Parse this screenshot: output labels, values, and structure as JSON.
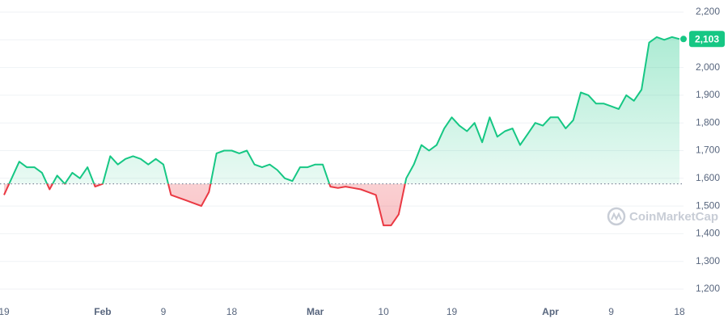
{
  "chart_data": {
    "type": "line",
    "categories": [
      "19",
      null,
      null,
      null,
      null,
      null,
      null,
      null,
      null,
      null,
      null,
      null,
      null,
      "Feb",
      null,
      null,
      null,
      null,
      null,
      null,
      null,
      "9",
      null,
      null,
      null,
      null,
      null,
      null,
      null,
      null,
      "18",
      null,
      null,
      null,
      null,
      null,
      null,
      null,
      null,
      null,
      null,
      "Mar",
      null,
      null,
      null,
      null,
      null,
      null,
      null,
      null,
      "10",
      null,
      null,
      null,
      null,
      null,
      null,
      null,
      null,
      "19",
      null,
      null,
      null,
      null,
      null,
      null,
      null,
      null,
      null,
      null,
      null,
      null,
      "Apr",
      null,
      null,
      null,
      null,
      null,
      null,
      null,
      "9",
      null,
      null,
      null,
      null,
      null,
      null,
      null,
      null,
      "18"
    ],
    "values": [
      1540,
      1600,
      1660,
      1640,
      1640,
      1620,
      1560,
      1610,
      1580,
      1620,
      1600,
      1640,
      1570,
      1580,
      1680,
      1650,
      1670,
      1680,
      1670,
      1650,
      1670,
      1650,
      1540,
      1530,
      1520,
      1510,
      1500,
      1550,
      1690,
      1700,
      1700,
      1690,
      1700,
      1650,
      1640,
      1650,
      1630,
      1600,
      1590,
      1640,
      1640,
      1650,
      1650,
      1570,
      1565,
      1570,
      1565,
      1560,
      1550,
      1540,
      1430,
      1430,
      1470,
      1600,
      1650,
      1720,
      1700,
      1720,
      1780,
      1820,
      1790,
      1770,
      1800,
      1730,
      1820,
      1750,
      1770,
      1780,
      1720,
      1760,
      1800,
      1790,
      1820,
      1820,
      1780,
      1810,
      1910,
      1900,
      1870,
      1870,
      1860,
      1850,
      1900,
      1880,
      1920,
      2090,
      2110,
      2100,
      2110,
      2103
    ],
    "up_color": "#16c784",
    "down_color": "#ea3943",
    "baseline": 1580,
    "current_price": {
      "value": 2103,
      "label": "2,103"
    },
    "ylim": [
      1200,
      2200
    ],
    "yticks": [
      {
        "value": 1200,
        "label": "1,200"
      },
      {
        "value": 1300,
        "label": "1,300"
      },
      {
        "value": 1400,
        "label": "1,400"
      },
      {
        "value": 1500,
        "label": "1,500"
      },
      {
        "value": 1600,
        "label": "1,600"
      },
      {
        "value": 1700,
        "label": "1,700"
      },
      {
        "value": 1800,
        "label": "1,800"
      },
      {
        "value": 1900,
        "label": "1,900"
      },
      {
        "value": 2000,
        "label": "2,000"
      },
      {
        "value": 2100,
        "label": "2,100"
      },
      {
        "value": 2200,
        "label": "2,200"
      }
    ],
    "grid": true,
    "watermark": "CoinMarketCap"
  }
}
